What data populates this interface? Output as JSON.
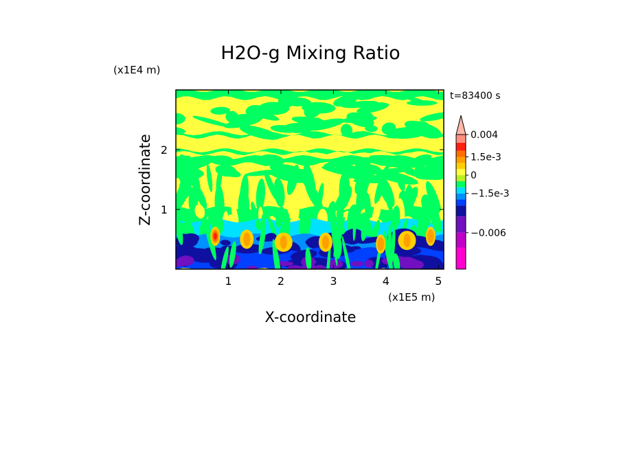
{
  "chart_data": {
    "type": "heatmap",
    "title": "H2O-g Mixing Ratio",
    "xlabel": "X-coordinate",
    "ylabel": "Z-coordinate",
    "x_unit": "(x1E5 m)",
    "y_unit": "(x1E4 m)",
    "time_label": "t=83400 s",
    "xlim": [
      0,
      5.1
    ],
    "ylim": [
      0,
      3.0
    ],
    "x_ticks": [
      "1",
      "2",
      "3",
      "4",
      "5"
    ],
    "y_ticks": [
      "1",
      "2"
    ],
    "colorbar": {
      "levels": [
        -0.009,
        -0.0075,
        -0.006,
        -0.0045,
        -0.003,
        -0.002,
        -0.0015,
        -0.001,
        -0.0005,
        0,
        0.0005,
        0.001,
        0.0015,
        0.002,
        0.003,
        0.004
      ],
      "labels": [
        "0.004",
        "1.5e-3",
        "0",
        "−1.5e-3",
        "−0.006"
      ],
      "label_values": [
        0.004,
        0.0015,
        0,
        -0.0015,
        -0.006
      ],
      "extend": "max"
    },
    "colors": {
      "magenta": "#ff00d0",
      "purple_light": "#c000c8",
      "purple": "#7010c0",
      "navy": "#1010a0",
      "blue": "#0040ff",
      "sky": "#0090ff",
      "cyan": "#00e0ff",
      "green": "#00ff60",
      "yellow_green": "#b8f020",
      "yellow": "#ffff40",
      "gold": "#ffd000",
      "orange": "#ffa000",
      "dark_orange": "#ff7000",
      "red": "#ff2010",
      "salmon": "#ff9080",
      "pink": "#ffb8a8"
    }
  }
}
